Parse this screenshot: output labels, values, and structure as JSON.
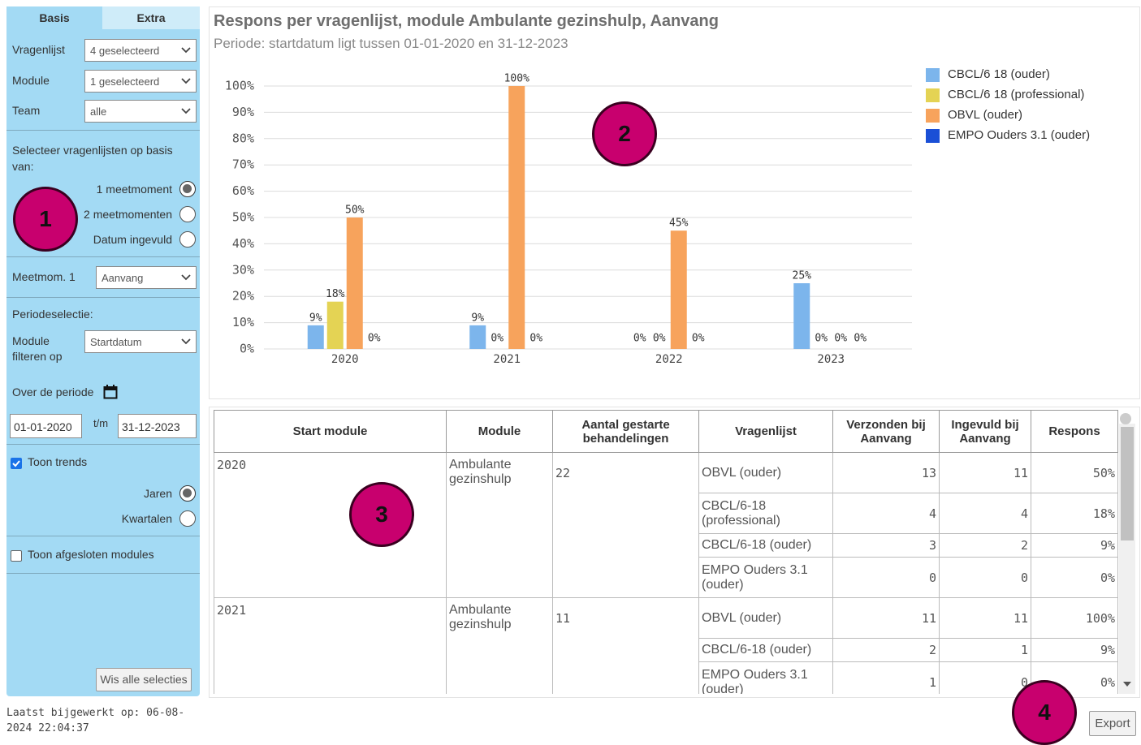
{
  "sidebar": {
    "tabs": [
      "Basis",
      "Extra"
    ],
    "fields": [
      {
        "label": "Vragenlijst",
        "value": "4 geselecteerd"
      },
      {
        "label": "Module",
        "value": "1 geselecteerd"
      },
      {
        "label": "Team",
        "value": "alle"
      }
    ],
    "basis_label": "Selecteer vragenlijsten op basis van:",
    "basis_options": [
      {
        "label": "1 meetmoment",
        "selected": true
      },
      {
        "label": "2 meetmomenten",
        "selected": false
      },
      {
        "label": "Datum ingevuld",
        "selected": false
      }
    ],
    "meetmoment": {
      "label": "Meetmom. 1",
      "value": "Aanvang"
    },
    "periode_label": "Periodeselectie:",
    "module_filter": {
      "label": "Module filteren op",
      "value": "Startdatum"
    },
    "over_periode": "Over de periode",
    "date_from": "01-01-2020",
    "date_sep": "t/m",
    "date_to": "31-12-2023",
    "toon_trends": {
      "label": "Toon trends",
      "checked": true
    },
    "trend_options": [
      {
        "label": "Jaren",
        "selected": true
      },
      {
        "label": "Kwartalen",
        "selected": false
      }
    ],
    "toon_afgesloten": {
      "label": "Toon afgesloten modules",
      "checked": false
    },
    "clear_button": "Wis alle selecties"
  },
  "footer": {
    "last_updated": "Laatst bijgewerkt op: 06-08-2024 22:04:37",
    "export": "Export"
  },
  "markers": [
    "1",
    "2",
    "3",
    "4"
  ],
  "chart_data": {
    "type": "bar",
    "title": "Respons per vragenlijst, module Ambulante gezinshulp, Aanvang",
    "subtitle": "Periode: startdatum ligt tussen 01-01-2020 en 31-12-2023",
    "categories": [
      "2020",
      "2021",
      "2022",
      "2023"
    ],
    "series": [
      {
        "name": "CBCL/6 18 (ouder)",
        "color": "#7cb5ec",
        "values": [
          9,
          9,
          0,
          25
        ],
        "value_labels": [
          "9%",
          "9%",
          "0%",
          "25%"
        ]
      },
      {
        "name": "CBCL/6 18 (professional)",
        "color": "#e4d354",
        "values": [
          18,
          0,
          0,
          0
        ],
        "value_labels": [
          "18%",
          "0%",
          "0%",
          "0%"
        ]
      },
      {
        "name": "OBVL (ouder)",
        "color": "#f7a35c",
        "values": [
          50,
          100,
          45,
          0
        ],
        "value_labels": [
          "50%",
          "100%",
          "45%",
          "0%"
        ]
      },
      {
        "name": "EMPO Ouders 3.1 (ouder)",
        "color": "#1a4fd6",
        "values": [
          0,
          0,
          0,
          0
        ],
        "value_labels": [
          "0%",
          "0%",
          "0%",
          "0%"
        ]
      }
    ],
    "ylim": [
      0,
      100
    ],
    "yticks": [
      {
        "value": 0,
        "label": "0%"
      },
      {
        "value": 10,
        "label": "10%"
      },
      {
        "value": 20,
        "label": "20%"
      },
      {
        "value": 30,
        "label": "30%"
      },
      {
        "value": 40,
        "label": "40%"
      },
      {
        "value": 50,
        "label": "50%"
      },
      {
        "value": 60,
        "label": "60%"
      },
      {
        "value": 70,
        "label": "70%"
      },
      {
        "value": 80,
        "label": "80%"
      },
      {
        "value": 90,
        "label": "90%"
      },
      {
        "value": 100,
        "label": "100%"
      }
    ],
    "grid": true,
    "legend": "right"
  },
  "table": {
    "headers": [
      "Start module",
      "Module",
      "Aantal gestarte behandelingen",
      "Vragenlijst",
      "Verzonden bij Aanvang",
      "Ingevuld bij Aanvang",
      "Respons"
    ],
    "groups": [
      {
        "start": "2020",
        "module": "Ambulante gezinshulp",
        "count": 22,
        "items": [
          {
            "vragenlijst": "OBVL (ouder)",
            "verzonden": 13,
            "ingevuld": 11,
            "respons": "50%"
          },
          {
            "vragenlijst": "CBCL/6-18 (professional)",
            "verzonden": 4,
            "ingevuld": 4,
            "respons": "18%"
          },
          {
            "vragenlijst": "CBCL/6-18 (ouder)",
            "verzonden": 3,
            "ingevuld": 2,
            "respons": "9%"
          },
          {
            "vragenlijst": "EMPO Ouders 3.1 (ouder)",
            "verzonden": 0,
            "ingevuld": 0,
            "respons": "0%"
          }
        ]
      },
      {
        "start": "2021",
        "module": "Ambulante gezinshulp",
        "count": 11,
        "items": [
          {
            "vragenlijst": "OBVL (ouder)",
            "verzonden": 11,
            "ingevuld": 11,
            "respons": "100%"
          },
          {
            "vragenlijst": "CBCL/6-18 (ouder)",
            "verzonden": 2,
            "ingevuld": 1,
            "respons": "9%"
          },
          {
            "vragenlijst": "EMPO Ouders 3.1 (ouder)",
            "verzonden": 1,
            "ingevuld": 0,
            "respons": "0%"
          }
        ]
      }
    ]
  }
}
